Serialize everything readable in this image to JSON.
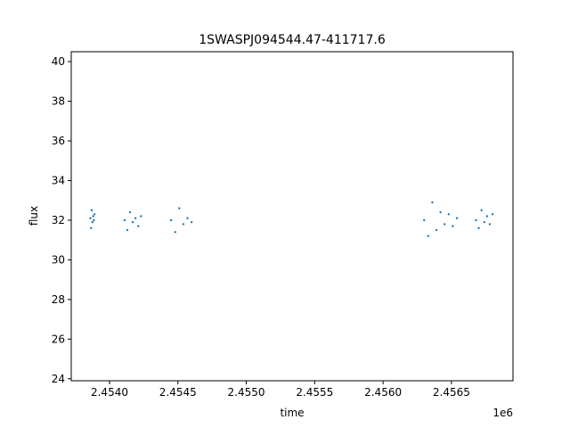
{
  "chart_data": {
    "type": "scatter",
    "title": "1SWASPJ094544.47-411717.6",
    "xlabel": "time",
    "ylabel": "flux",
    "x_offset_label": "1e6",
    "xlim": [
      2453720,
      2456950
    ],
    "ylim": [
      23.9,
      40.5
    ],
    "x_ticks": [
      {
        "value": 2454000,
        "label": "2.4540"
      },
      {
        "value": 2454500,
        "label": "2.4545"
      },
      {
        "value": 2455000,
        "label": "2.4550"
      },
      {
        "value": 2455500,
        "label": "2.4555"
      },
      {
        "value": 2456000,
        "label": "2.4560"
      },
      {
        "value": 2456500,
        "label": "2.4565"
      }
    ],
    "y_ticks": [
      24,
      26,
      28,
      30,
      32,
      34,
      36,
      38,
      40
    ],
    "grid": false,
    "marker_color": "#1f77b4",
    "series": [
      {
        "x": [
          2453860,
          2453865,
          2453870,
          2453875,
          2453880,
          2453885,
          2453890,
          2454110,
          2454130,
          2454150,
          2454170,
          2454190,
          2454210,
          2454230,
          2454450,
          2454480,
          2454510,
          2454540,
          2454570,
          2454600,
          2456300,
          2456330,
          2456360,
          2456390,
          2456420,
          2456450,
          2456480,
          2456510,
          2456540,
          2456680,
          2456700,
          2456720,
          2456740,
          2456760,
          2456780,
          2456800
        ],
        "y": [
          32.1,
          31.6,
          32.5,
          31.9,
          32.2,
          32.0,
          32.3,
          32.0,
          31.5,
          32.4,
          31.9,
          32.1,
          31.7,
          32.2,
          32.0,
          31.4,
          32.6,
          31.8,
          32.1,
          31.9,
          32.0,
          31.2,
          32.9,
          31.5,
          32.4,
          31.8,
          32.3,
          31.7,
          32.1,
          32.0,
          31.6,
          32.5,
          31.9,
          32.2,
          31.8,
          32.3
        ]
      }
    ]
  }
}
